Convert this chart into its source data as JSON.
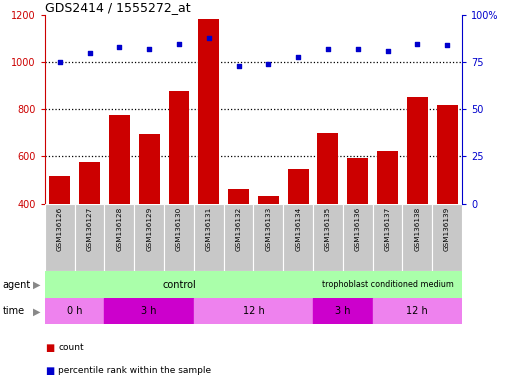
{
  "title": "GDS2414 / 1555272_at",
  "samples": [
    "GSM136126",
    "GSM136127",
    "GSM136128",
    "GSM136129",
    "GSM136130",
    "GSM136131",
    "GSM136132",
    "GSM136133",
    "GSM136134",
    "GSM136135",
    "GSM136136",
    "GSM136137",
    "GSM136138",
    "GSM136139"
  ],
  "counts": [
    515,
    575,
    775,
    695,
    880,
    1185,
    460,
    430,
    548,
    700,
    595,
    625,
    855,
    820
  ],
  "percentiles": [
    75,
    80,
    83,
    82,
    85,
    88,
    73,
    74,
    78,
    82,
    82,
    81,
    85,
    84
  ],
  "bar_color": "#cc0000",
  "dot_color": "#0000cc",
  "ylim_left": [
    400,
    1200
  ],
  "ylim_right": [
    0,
    100
  ],
  "yticks_left": [
    400,
    600,
    800,
    1000,
    1200
  ],
  "ytick_labels_left": [
    "400",
    "600",
    "800",
    "1000",
    "1200"
  ],
  "yticks_right": [
    0,
    25,
    50,
    75,
    100
  ],
  "ytick_labels_right": [
    "0",
    "25",
    "50",
    "75",
    "100%"
  ],
  "dotted_line_values": [
    600,
    800,
    1000
  ],
  "bar_color_dark": "#aa0000",
  "tick_color_left": "#cc0000",
  "tick_color_right": "#0000cc",
  "xticklabel_bg": "#c8c8c8",
  "xticklabel_border": "#aaaaaa",
  "agent_control_color": "#aaffaa",
  "agent_tcm_color": "#aaffaa",
  "time_color_light": "#ee82ee",
  "time_color_dark": "#cc00cc",
  "control_n": 9,
  "time_groups": [
    {
      "label": "0 h",
      "n": 2,
      "dark": false
    },
    {
      "label": "3 h",
      "n": 3,
      "dark": true
    },
    {
      "label": "12 h",
      "n": 4,
      "dark": false
    },
    {
      "label": "3 h",
      "n": 2,
      "dark": true
    },
    {
      "label": "12 h",
      "n": 3,
      "dark": false
    }
  ]
}
